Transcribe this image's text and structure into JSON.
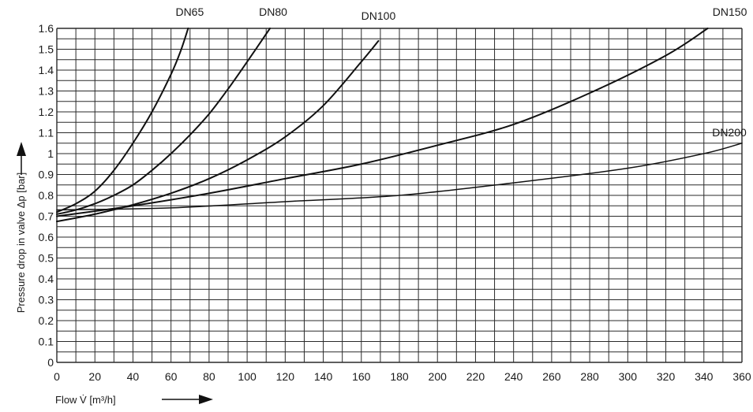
{
  "chart_data": {
    "type": "line",
    "title": "",
    "xlabel": "Flow V̇ [m³/h]",
    "ylabel": "Pressure drop in valve Δp [bar]",
    "xlim": [
      0,
      360
    ],
    "ylim": [
      0,
      1.6
    ],
    "x_ticks": [
      0,
      20,
      40,
      60,
      80,
      100,
      120,
      140,
      160,
      180,
      200,
      220,
      240,
      260,
      280,
      300,
      320,
      340,
      360
    ],
    "y_ticks": [
      0,
      0.1,
      0.2,
      0.3,
      0.4,
      0.5,
      0.6,
      0.7,
      0.8,
      0.9,
      1,
      1.1,
      1.2,
      1.3,
      1.4,
      1.5,
      1.6
    ],
    "y_tick_labels": [
      "0",
      "0.1",
      "0.2",
      "0.3",
      "0.4",
      "0.5",
      "0.6",
      "0.7",
      "0.8",
      "0.9",
      "1",
      "1.1",
      "1.2",
      "1.3",
      "1.4",
      "1.5",
      "1.6"
    ],
    "grid": true,
    "series": [
      {
        "name": "DN65",
        "x": [
          0,
          10,
          20,
          30,
          40,
          50,
          60,
          65,
          69
        ],
        "y": [
          0.72,
          0.76,
          0.82,
          0.92,
          1.05,
          1.2,
          1.38,
          1.49,
          1.6
        ]
      },
      {
        "name": "DN80",
        "x": [
          0,
          10,
          20,
          30,
          40,
          50,
          60,
          70,
          80,
          90,
          100,
          112
        ],
        "y": [
          0.71,
          0.73,
          0.76,
          0.8,
          0.85,
          0.92,
          1.0,
          1.09,
          1.19,
          1.31,
          1.44,
          1.6
        ]
      },
      {
        "name": "DN100",
        "x": [
          0,
          20,
          40,
          60,
          80,
          100,
          120,
          140,
          160,
          169
        ],
        "y": [
          0.675,
          0.71,
          0.755,
          0.81,
          0.88,
          0.97,
          1.08,
          1.23,
          1.44,
          1.54
        ]
      },
      {
        "name": "DN150",
        "x": [
          0,
          40,
          80,
          120,
          160,
          200,
          240,
          280,
          320,
          342
        ],
        "y": [
          0.7,
          0.75,
          0.81,
          0.88,
          0.95,
          1.04,
          1.14,
          1.29,
          1.47,
          1.6
        ]
      },
      {
        "name": "DN200",
        "x": [
          0,
          60,
          120,
          180,
          240,
          300,
          340,
          360
        ],
        "y": [
          0.73,
          0.74,
          0.77,
          0.8,
          0.86,
          0.93,
          1.0,
          1.05
        ]
      }
    ]
  }
}
